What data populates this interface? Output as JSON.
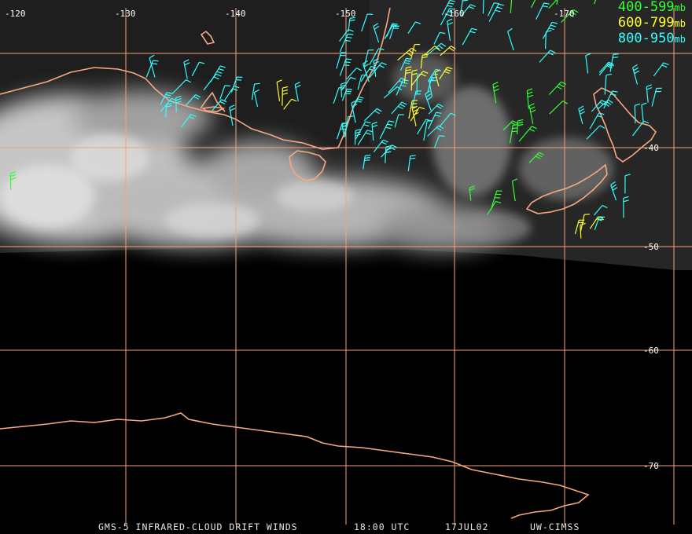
{
  "map": {
    "longitude_labels": [
      "-120",
      "-130",
      "-140",
      "-150",
      "-160",
      "-170"
    ],
    "latitude_labels": [
      "-40",
      "-50",
      "-60",
      "-70"
    ],
    "colors": {
      "background": "#000000",
      "graticule": "#f2a27a",
      "coastline": "#f7a884",
      "cloud": "#d8d8d8"
    }
  },
  "legend": {
    "items": [
      {
        "range": "400-599",
        "unit": "mb",
        "color": "#33ff33"
      },
      {
        "range": "600-799",
        "unit": "mb",
        "color": "#ffff33"
      },
      {
        "range": "800-950",
        "unit": "mb",
        "color": "#33ffff"
      }
    ]
  },
  "caption": {
    "product": "GMS-5 INFRARED-CLOUD DRIFT WINDS",
    "time": "18:00 UTC",
    "date": "17JUL02",
    "source": "UW-CIMSS"
  }
}
